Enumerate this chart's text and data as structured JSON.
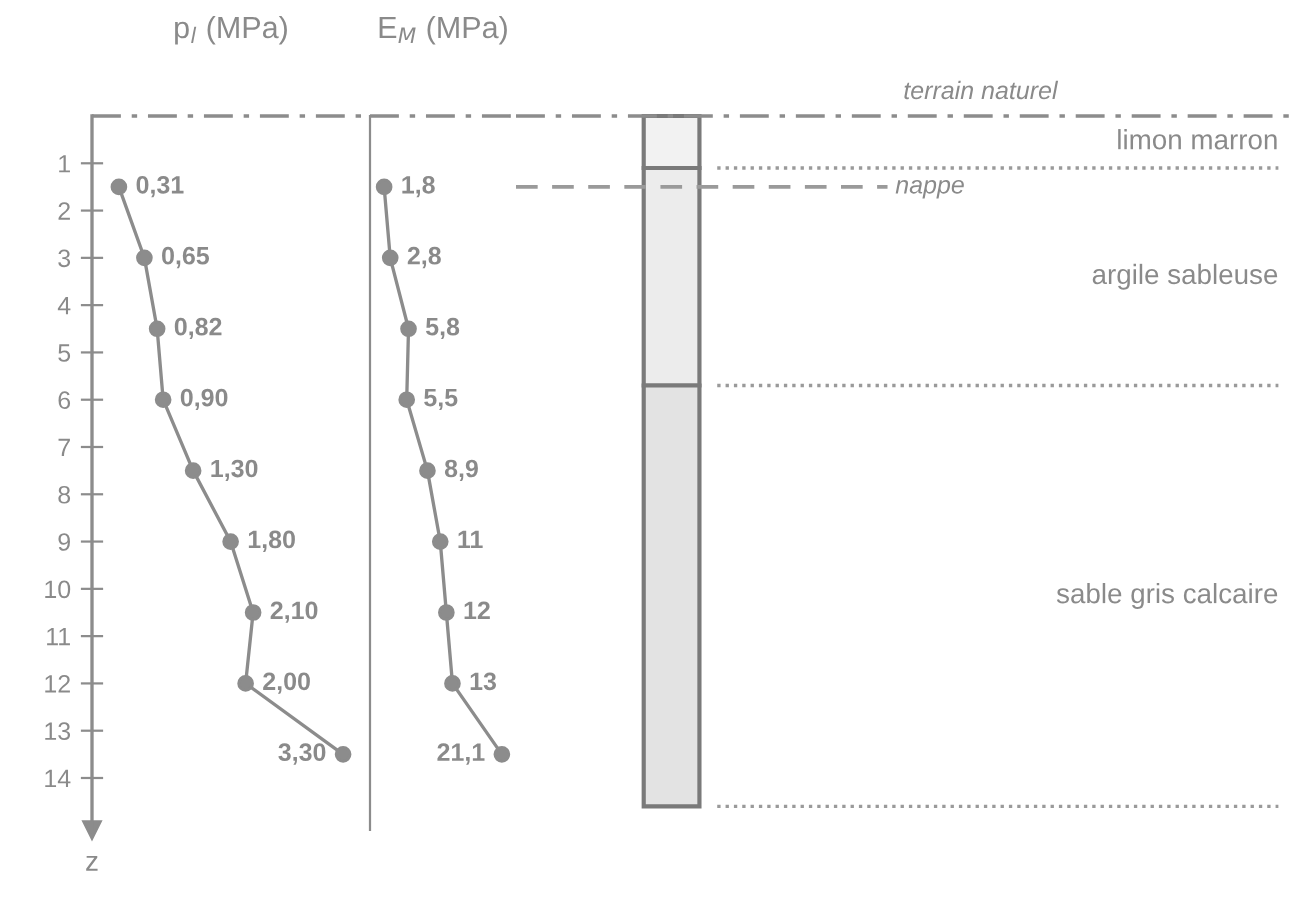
{
  "chart_data": [
    {
      "type": "line",
      "title": "p$_{l}$ (MPa)",
      "orientation": "horizontal",
      "marker": "circle",
      "line_style": "solid",
      "color": "#8c8c8c",
      "x": [
        1.5,
        3,
        4.5,
        6,
        7.5,
        9,
        10.5,
        12,
        13.5
      ],
      "values": [
        0.31,
        0.65,
        0.82,
        0.9,
        1.3,
        1.8,
        2.1,
        2.0,
        3.3
      ],
      "value_labels": [
        "0,31",
        "0,65",
        "0,82",
        "0,90",
        "1,30",
        "1,80",
        "2,10",
        "2,00",
        "3,30"
      ],
      "ylim": [
        15.1,
        0
      ],
      "yticks": [
        1,
        2,
        3,
        4,
        5,
        6,
        7,
        8,
        9,
        10,
        11,
        12,
        13,
        14
      ],
      "ylabel": "z",
      "tick_labels": "y",
      "ref_lines": [
        {
          "axis": "y",
          "value": 0,
          "label": null,
          "color": "#8c8c8c",
          "line_style": "dashdot"
        }
      ]
    },
    {
      "type": "line",
      "title": "E$_{M}$ (MPa)",
      "orientation": "horizontal",
      "marker": "circle",
      "line_style": "solid",
      "color": "#8c8c8c",
      "x": [
        1.5,
        3,
        4.5,
        6,
        7.5,
        9,
        10.5,
        12,
        13.5
      ],
      "values": [
        1.8,
        2.8,
        5.8,
        5.5,
        8.9,
        11,
        12,
        13,
        21.1
      ],
      "value_labels": [
        "1,8",
        "2,8",
        "5,8",
        "5,5",
        "8,9",
        "11",
        "12",
        "13",
        "21,1"
      ],
      "ylim": [
        15.1,
        0
      ],
      "tick_labels": false,
      "ref_lines": [
        {
          "axis": "y",
          "value": 0,
          "label": null,
          "color": "#8c8c8c",
          "line_style": "dashdot"
        }
      ]
    },
    {
      "type": "other",
      "annotations": [
        "terrain naturel",
        "nappe",
        "limon marron",
        "argile sableuse",
        "sable gris calcaire"
      ]
    }
  ]
}
